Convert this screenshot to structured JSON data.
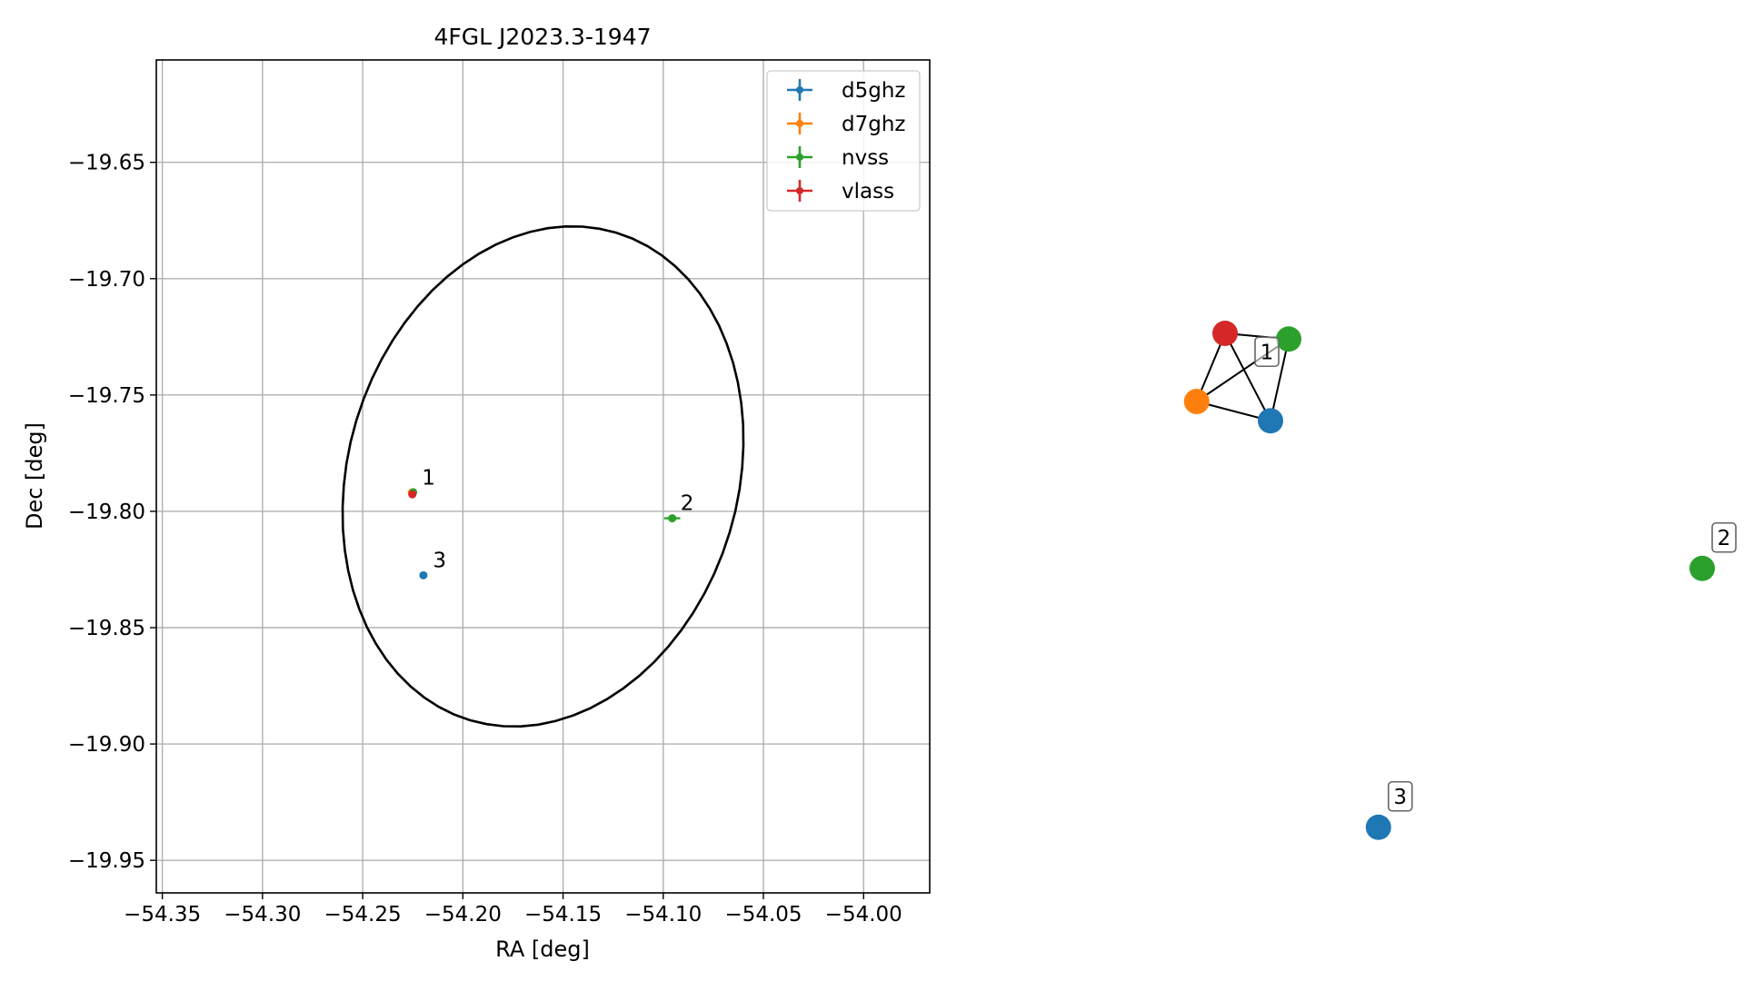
{
  "chart_data": [
    {
      "type": "scatter",
      "title": "4FGL J2023.3-1947",
      "xlabel": "RA [deg]",
      "ylabel": "Dec [deg]",
      "xlim": [
        -54.353,
        -53.967
      ],
      "ylim": [
        -19.964,
        -19.606
      ],
      "x_ticks": [
        -54.35,
        -54.3,
        -54.25,
        -54.2,
        -54.15,
        -54.1,
        -54.05,
        -54.0
      ],
      "x_tick_labels": [
        "−54.35",
        "−54.30",
        "−54.25",
        "−54.20",
        "−54.15",
        "−54.10",
        "−54.05",
        "−54.00"
      ],
      "y_ticks": [
        -19.65,
        -19.7,
        -19.75,
        -19.8,
        -19.85,
        -19.9,
        -19.95
      ],
      "y_tick_labels": [
        "−19.65",
        "−19.70",
        "−19.75",
        "−19.80",
        "−19.85",
        "−19.90",
        "−19.95"
      ],
      "grid": true,
      "legend_position": "top-right",
      "series": [
        {
          "name": "d5ghz",
          "color": "#1f77b4",
          "points": [
            {
              "x": -54.2197,
              "y": -19.8275
            }
          ]
        },
        {
          "name": "d7ghz",
          "color": "#ff7f0e",
          "points": [
            {
              "x": -54.2255,
              "y": -19.792
            }
          ]
        },
        {
          "name": "nvss",
          "color": "#2ca02c",
          "points": [
            {
              "x": -54.2248,
              "y": -19.7918,
              "x_err": 0.0015
            },
            {
              "x": -54.0955,
              "y": -19.803,
              "x_err": 0.004
            }
          ]
        },
        {
          "name": "vlass",
          "color": "#d62728",
          "points": [
            {
              "x": -54.2252,
              "y": -19.7927
            }
          ]
        }
      ],
      "annotations": [
        {
          "text": "1",
          "x": -54.2245,
          "y": -19.792
        },
        {
          "text": "2",
          "x": -54.0955,
          "y": -19.803
        },
        {
          "text": "3",
          "x": -54.219,
          "y": -19.8275
        }
      ],
      "ellipse": {
        "color": "#000000",
        "center": {
          "x": -54.16,
          "y": -19.785
        },
        "semi_major_deg": 0.112,
        "semi_minor_deg": 0.095,
        "rotation_deg": 58
      }
    },
    {
      "type": "network",
      "node_size_note": "clusters of matched catalogue sources",
      "nodes": [
        {
          "id": "red",
          "series": "vlass",
          "color": "#d62728",
          "x": 0.0,
          "y": 0.0
        },
        {
          "id": "green1",
          "series": "nvss",
          "color": "#2ca02c",
          "x": 0.56,
          "y": -0.05
        },
        {
          "id": "orange",
          "series": "d7ghz",
          "color": "#ff7f0e",
          "x": -0.25,
          "y": -0.6
        },
        {
          "id": "blue1",
          "series": "d5ghz",
          "color": "#1f77b4",
          "x": 0.4,
          "y": -0.77
        },
        {
          "id": "green2",
          "series": "nvss",
          "color": "#2ca02c",
          "x": 4.2,
          "y": -2.07
        },
        {
          "id": "blue3",
          "series": "d5ghz",
          "color": "#1f77b4",
          "x": 1.35,
          "y": -4.35
        }
      ],
      "edges": [
        [
          "red",
          "green1"
        ],
        [
          "red",
          "orange"
        ],
        [
          "red",
          "blue1"
        ],
        [
          "green1",
          "orange"
        ],
        [
          "green1",
          "blue1"
        ],
        [
          "orange",
          "blue1"
        ]
      ],
      "labels": [
        {
          "text": "1",
          "near": "green1"
        },
        {
          "text": "2",
          "near": "green2"
        },
        {
          "text": "3",
          "near": "blue3"
        }
      ]
    }
  ]
}
